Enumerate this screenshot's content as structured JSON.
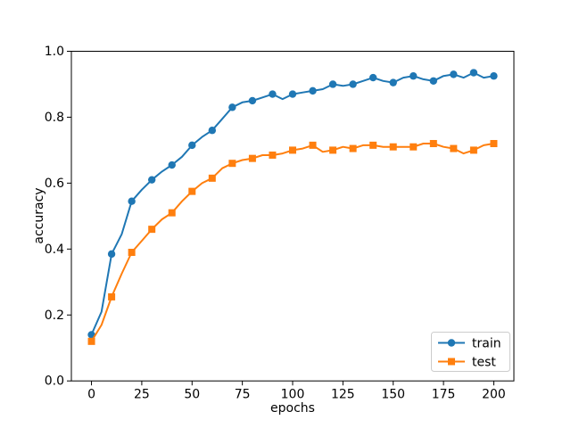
{
  "figure": {
    "background": "#ffffff",
    "axis_color": "#000000"
  },
  "chart_data": {
    "type": "line",
    "title": "",
    "xlabel": "epochs",
    "ylabel": "accuracy",
    "xlim": [
      -10,
      210
    ],
    "ylim": [
      0.0,
      1.0
    ],
    "x_ticks": [
      0,
      25,
      50,
      75,
      100,
      125,
      150,
      175,
      200
    ],
    "x_tick_labels": [
      "0",
      "25",
      "50",
      "75",
      "100",
      "125",
      "150",
      "175",
      "200"
    ],
    "y_ticks": [
      0.0,
      0.2,
      0.4,
      0.6,
      0.8,
      1.0
    ],
    "y_tick_labels": [
      "0.0",
      "0.2",
      "0.4",
      "0.6",
      "0.8",
      "1.0"
    ],
    "grid": false,
    "legend": {
      "position": "lower right",
      "entries": [
        "train",
        "test"
      ]
    },
    "x": [
      0,
      5,
      10,
      15,
      20,
      25,
      30,
      35,
      40,
      45,
      50,
      55,
      60,
      65,
      70,
      75,
      80,
      85,
      90,
      95,
      100,
      105,
      110,
      115,
      120,
      125,
      130,
      135,
      140,
      145,
      150,
      155,
      160,
      165,
      170,
      175,
      180,
      185,
      190,
      195,
      200
    ],
    "series": [
      {
        "name": "train",
        "color": "#1f77b4",
        "marker": "circle",
        "marker_every_epochs": 10,
        "values": [
          0.14,
          0.21,
          0.385,
          0.445,
          0.545,
          0.58,
          0.61,
          0.635,
          0.655,
          0.68,
          0.715,
          0.74,
          0.76,
          0.795,
          0.83,
          0.845,
          0.85,
          0.86,
          0.87,
          0.855,
          0.87,
          0.875,
          0.88,
          0.885,
          0.9,
          0.895,
          0.9,
          0.91,
          0.92,
          0.91,
          0.905,
          0.92,
          0.925,
          0.915,
          0.91,
          0.925,
          0.93,
          0.92,
          0.935,
          0.92,
          0.925
        ]
      },
      {
        "name": "test",
        "color": "#ff7f0e",
        "marker": "square",
        "marker_every_epochs": 10,
        "values": [
          0.12,
          0.17,
          0.255,
          0.325,
          0.39,
          0.425,
          0.46,
          0.49,
          0.51,
          0.545,
          0.575,
          0.6,
          0.615,
          0.645,
          0.66,
          0.67,
          0.675,
          0.685,
          0.685,
          0.69,
          0.7,
          0.705,
          0.715,
          0.695,
          0.7,
          0.71,
          0.705,
          0.715,
          0.715,
          0.71,
          0.71,
          0.71,
          0.71,
          0.72,
          0.72,
          0.71,
          0.705,
          0.69,
          0.7,
          0.715,
          0.72
        ]
      }
    ]
  }
}
